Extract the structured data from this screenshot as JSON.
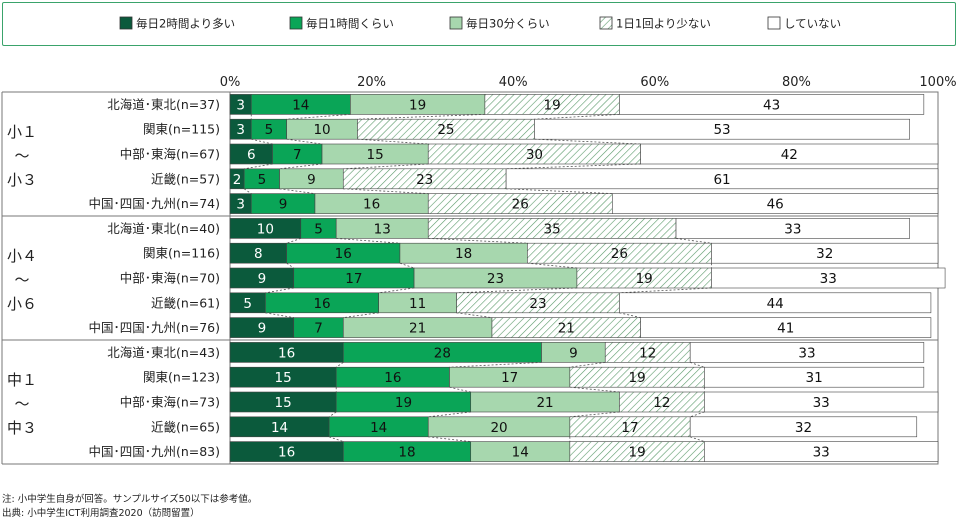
{
  "chart_data": {
    "type": "bar",
    "orientation": "horizontal",
    "stacked": true,
    "percent": true,
    "xlim": [
      0,
      100
    ],
    "x_ticks": [
      "0%",
      "20%",
      "40%",
      "60%",
      "80%",
      "100%"
    ],
    "legend_position": "top",
    "series": [
      {
        "name": "毎日2時間より多い",
        "color": "#0b5a3c",
        "text_color": "#ffffff",
        "pattern": "solid"
      },
      {
        "name": "毎日1時間くらい",
        "color": "#0aa557",
        "text_color": "#111111",
        "pattern": "solid"
      },
      {
        "name": "毎日30分くらい",
        "color": "#a7d7ae",
        "text_color": "#111111",
        "pattern": "solid"
      },
      {
        "name": "1日1回より少ない",
        "color": "#ffffff",
        "text_color": "#111111",
        "pattern": "hatch",
        "hatch_color": "#5a9a6a"
      },
      {
        "name": "していない",
        "color": "#ffffff",
        "text_color": "#111111",
        "pattern": "solid"
      }
    ],
    "groups": [
      {
        "label": "小１〜小３",
        "label_lines": [
          "小１",
          "〜",
          "小３"
        ],
        "rows": [
          {
            "label": "北海道･東北(n=37)",
            "values": [
              3,
              14,
              19,
              19,
              43
            ]
          },
          {
            "label": "関東(n=115)",
            "values": [
              3,
              5,
              10,
              25,
              53
            ]
          },
          {
            "label": "中部･東海(n=67)",
            "values": [
              6,
              7,
              15,
              30,
              42
            ]
          },
          {
            "label": "近畿(n=57)",
            "values": [
              2,
              5,
              9,
              23,
              61
            ]
          },
          {
            "label": "中国･四国･九州(n=74)",
            "values": [
              3,
              9,
              16,
              26,
              46
            ]
          }
        ]
      },
      {
        "label": "小４〜小６",
        "label_lines": [
          "小４",
          "〜",
          "小６"
        ],
        "rows": [
          {
            "label": "北海道･東北(n=40)",
            "values": [
              10,
              5,
              13,
              35,
              33
            ]
          },
          {
            "label": "関東(n=116)",
            "values": [
              8,
              16,
              18,
              26,
              32
            ]
          },
          {
            "label": "中部･東海(n=70)",
            "values": [
              9,
              17,
              23,
              19,
              33
            ]
          },
          {
            "label": "近畿(n=61)",
            "values": [
              5,
              16,
              11,
              23,
              44
            ]
          },
          {
            "label": "中国･四国･九州(n=76)",
            "values": [
              9,
              7,
              21,
              21,
              41
            ]
          }
        ]
      },
      {
        "label": "中１〜中３",
        "label_lines": [
          "中１",
          "〜",
          "中３"
        ],
        "rows": [
          {
            "label": "北海道･東北(n=43)",
            "values": [
              16,
              28,
              9,
              12,
              33
            ]
          },
          {
            "label": "関東(n=123)",
            "values": [
              15,
              16,
              17,
              19,
              31
            ]
          },
          {
            "label": "中部･東海(n=73)",
            "values": [
              15,
              19,
              21,
              12,
              33
            ]
          },
          {
            "label": "近畿(n=65)",
            "values": [
              14,
              14,
              20,
              17,
              32
            ]
          },
          {
            "label": "中国･四国･九州(n=83)",
            "values": [
              16,
              18,
              14,
              19,
              33
            ]
          }
        ]
      }
    ]
  },
  "notes": {
    "note": "注: 小中学生自身が回答。サンプルサイズ50以下は参考値。",
    "source": "出典: 小中学生ICT利用調査2020（訪問留置）"
  }
}
